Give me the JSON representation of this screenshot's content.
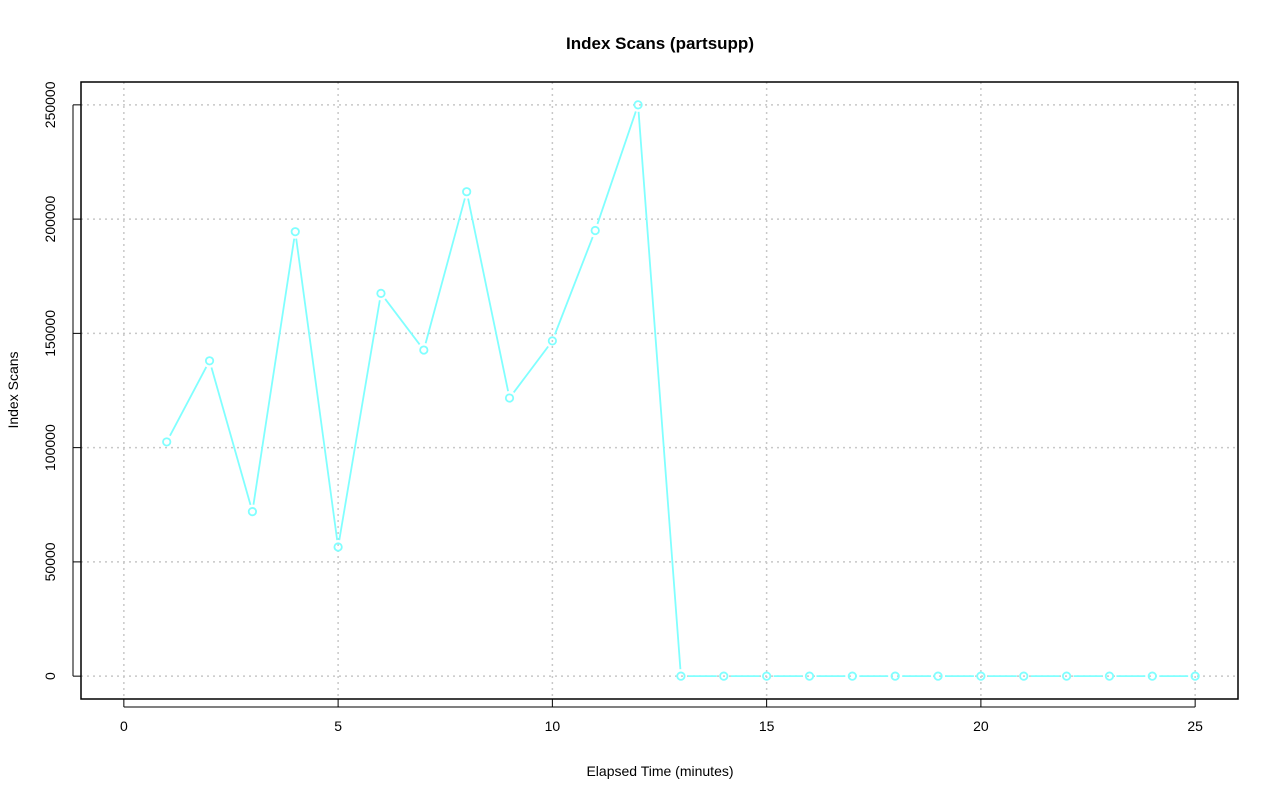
{
  "chart_data": {
    "type": "line",
    "title": "Index Scans (partsupp)",
    "xlabel": "Elapsed Time (minutes)",
    "ylabel": "Index Scans",
    "xlim": [
      -1,
      26
    ],
    "ylim": [
      -10000,
      260000
    ],
    "x_ticks": [
      0,
      5,
      10,
      15,
      20,
      25
    ],
    "y_ticks": [
      0,
      50000,
      100000,
      150000,
      200000,
      250000
    ],
    "grid": true,
    "color": "#80ffff",
    "x": [
      1,
      2,
      3,
      4,
      5,
      6,
      7,
      8,
      9,
      10,
      11,
      12,
      13,
      14,
      15,
      16,
      17,
      18,
      19,
      20,
      21,
      22,
      23,
      24,
      25
    ],
    "values": [
      102500,
      138000,
      72000,
      194500,
      56500,
      167500,
      142700,
      212000,
      121700,
      146700,
      195000,
      250000,
      0,
      0,
      0,
      0,
      0,
      0,
      0,
      0,
      0,
      0,
      0,
      0,
      0
    ]
  }
}
